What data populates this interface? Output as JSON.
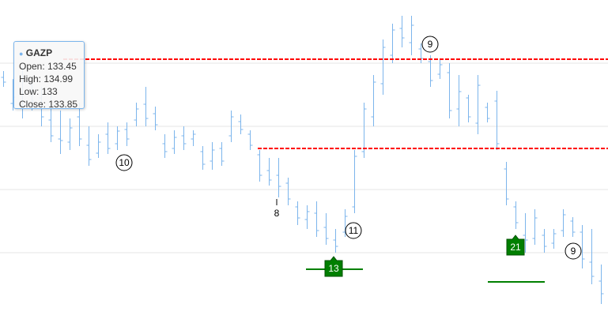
{
  "chart_data": {
    "type": "ohlc",
    "name": "GAZP",
    "color": "#7cb5ec",
    "open": [
      135.1,
      133.45,
      134.0,
      134.6,
      133.8,
      132.4,
      131.2,
      131,
      132.6,
      130.8,
      130.3,
      131.5,
      130.9,
      131.8,
      132.4,
      133.4,
      132.8,
      130.9,
      130.6,
      131.4,
      131.2,
      130.4,
      129.8,
      130.6,
      131.4,
      132.3,
      131.5,
      130.2,
      129.2,
      128.9,
      128.4,
      126.9,
      126.1,
      126.5,
      125.6,
      124.8,
      125.3,
      126.9,
      130.4,
      132.6,
      134.7,
      136.5,
      138.2,
      137.3,
      136.9,
      136.1,
      135.3,
      135.4,
      133.1,
      133.8,
      132.2,
      133.2,
      133.6,
      129.3,
      126.9,
      125.1,
      124.9,
      125.1,
      124.6,
      125.4,
      126,
      125.3,
      123.4,
      122.2
    ],
    "high": [
      135.5,
      134.99,
      135.75,
      135,
      134.5,
      134,
      133,
      132.5,
      133.5,
      132,
      131.5,
      132.25,
      132,
      132.25,
      133.5,
      134.5,
      133.25,
      131.5,
      131.75,
      132,
      131.75,
      130.75,
      131,
      131,
      133,
      132.75,
      131.75,
      130.5,
      130,
      130,
      128.75,
      127.25,
      127,
      127.25,
      126.5,
      125.5,
      126.75,
      130.5,
      133.5,
      135.25,
      137.5,
      138.5,
      139,
      139,
      137.25,
      136.5,
      136.25,
      136,
      135.25,
      134,
      135.25,
      133.5,
      134.25,
      129.75,
      127.25,
      126.5,
      126.75,
      125.5,
      125.5,
      126.75,
      126.25,
      125.75,
      125.5,
      123.25
    ],
    "low": [
      134.5,
      133,
      132.5,
      133,
      132,
      131,
      130.25,
      130.5,
      130.75,
      129.5,
      130,
      130.25,
      130.5,
      130.75,
      132,
      132,
      131.75,
      130,
      130.25,
      130.5,
      130.75,
      129.25,
      129.25,
      129.5,
      131,
      131.5,
      130.5,
      128.5,
      128.25,
      127.5,
      127,
      125.75,
      125.5,
      125,
      124.5,
      124,
      125,
      126.5,
      130,
      132,
      134,
      136,
      137,
      136.5,
      136,
      134.5,
      135,
      132.5,
      132,
      132.25,
      131.5,
      132.25,
      130.5,
      127,
      125.5,
      124,
      124.5,
      124,
      124.25,
      125,
      125,
      123,
      122,
      120.75
    ],
    "close": [
      134.8,
      133.85,
      134.9,
      133.6,
      132.6,
      131.4,
      131.1,
      131.9,
      131.2,
      129.9,
      131,
      130.6,
      131.7,
      131.2,
      133.1,
      132.5,
      132.1,
      130.4,
      131.3,
      130.9,
      131.5,
      129.6,
      130.5,
      129.8,
      132.6,
      131.8,
      130.8,
      128.9,
      128.6,
      128.2,
      127.4,
      126.2,
      126.6,
      125.4,
      124.9,
      124.4,
      126.3,
      130.1,
      133.1,
      134.8,
      137,
      138.1,
      137.6,
      138.4,
      136.3,
      134.9,
      135.9,
      133,
      134.2,
      132.6,
      134.6,
      132.5,
      130.9,
      127.4,
      125.9,
      124.8,
      126.2,
      124.4,
      125.2,
      126.4,
      125.3,
      123.6,
      122.5,
      121.4
    ],
    "ylim": [
      119.8,
      140
    ],
    "yticks": [
      124,
      128,
      132,
      136
    ],
    "grid": true,
    "plot_lines": [
      {
        "value": 136.25,
        "color": "#ff0000",
        "dash": true
      },
      {
        "value": 130.6,
        "color": "#ff0000",
        "dash": true
      },
      {
        "value": 122.95,
        "color": "#008000",
        "dash": false
      },
      {
        "value": 122.15,
        "color": "#008000",
        "dash": false
      }
    ],
    "annotations": [
      "10",
      "8",
      "11",
      "9",
      "9"
    ],
    "flags": [
      "13",
      "21"
    ],
    "flag_color": "#007f00",
    "tooltip": {
      "labels": [
        "Open:",
        "High:",
        "Low:",
        "Close:"
      ]
    }
  }
}
